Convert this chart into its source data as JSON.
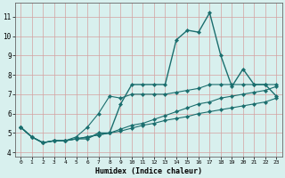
{
  "xlabel": "Humidex (Indice chaleur)",
  "background_color": "#d8f0ee",
  "grid_color": "#c0d8d4",
  "line_color": "#1a6e6e",
  "xlim": [
    -0.5,
    23.5
  ],
  "ylim": [
    3.8,
    11.7
  ],
  "xticks": [
    0,
    1,
    2,
    3,
    4,
    5,
    6,
    7,
    8,
    9,
    10,
    11,
    12,
    13,
    14,
    15,
    16,
    17,
    18,
    19,
    20,
    21,
    22,
    23
  ],
  "yticks": [
    4,
    5,
    6,
    7,
    8,
    9,
    10,
    11
  ],
  "lines": [
    [
      5.3,
      4.8,
      4.5,
      4.6,
      4.6,
      4.7,
      4.7,
      5.0,
      5.0,
      6.5,
      7.5,
      7.5,
      7.5,
      7.5,
      9.8,
      10.3,
      10.2,
      11.2,
      9.0,
      7.4,
      8.3,
      7.5,
      7.5,
      6.9
    ],
    [
      5.3,
      4.8,
      4.5,
      4.6,
      4.6,
      4.8,
      5.3,
      6.0,
      6.9,
      6.8,
      7.0,
      7.0,
      7.0,
      7.0,
      7.1,
      7.2,
      7.3,
      7.5,
      7.5,
      7.5,
      7.5,
      7.5,
      7.5,
      7.5
    ],
    [
      5.3,
      4.8,
      4.5,
      4.6,
      4.6,
      4.7,
      4.8,
      4.9,
      5.0,
      5.2,
      5.4,
      5.5,
      5.7,
      5.9,
      6.1,
      6.3,
      6.5,
      6.6,
      6.8,
      6.9,
      7.0,
      7.1,
      7.2,
      7.4
    ],
    [
      5.3,
      4.8,
      4.5,
      4.6,
      4.6,
      4.7,
      4.8,
      4.9,
      5.0,
      5.1,
      5.25,
      5.4,
      5.5,
      5.65,
      5.75,
      5.85,
      6.0,
      6.1,
      6.2,
      6.3,
      6.4,
      6.5,
      6.6,
      6.8
    ]
  ]
}
